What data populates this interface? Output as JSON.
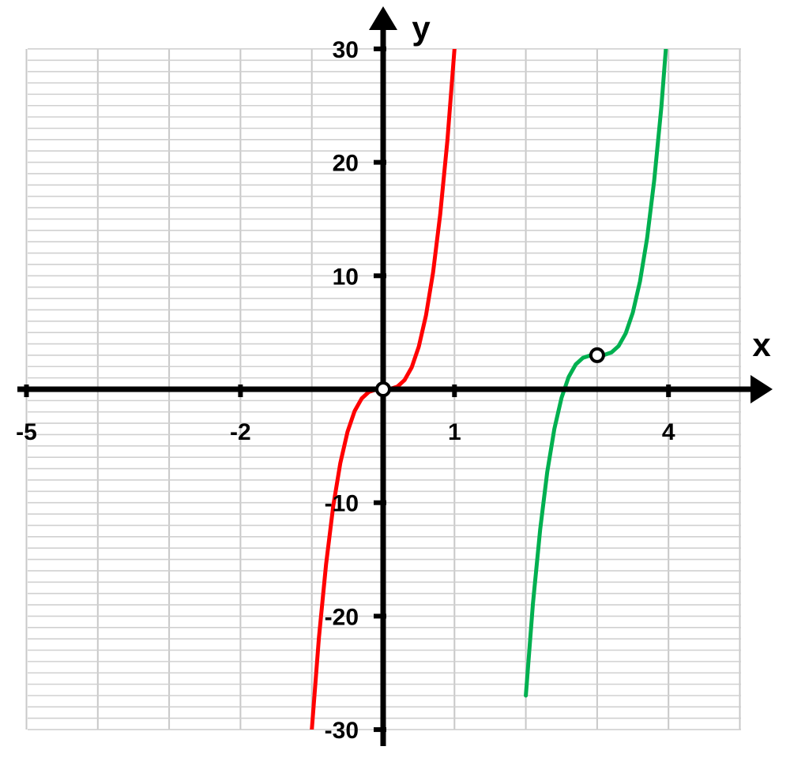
{
  "chart_data": {
    "type": "line",
    "xlabel": "x",
    "ylabel": "y",
    "xlim": [
      -5,
      5
    ],
    "ylim": [
      -30,
      30
    ],
    "x_tick_labels": [
      {
        "x": -5,
        "label": "-5"
      },
      {
        "x": -2,
        "label": "-2"
      },
      {
        "x": 1,
        "label": "1"
      },
      {
        "x": 4,
        "label": "4"
      }
    ],
    "y_tick_labels": [
      {
        "y": 30,
        "label": "30"
      },
      {
        "y": 20,
        "label": "20"
      },
      {
        "y": 10,
        "label": "10"
      },
      {
        "y": -10,
        "label": "-10"
      },
      {
        "y": -20,
        "label": "-20"
      },
      {
        "y": -30,
        "label": "-30"
      }
    ],
    "grid": true,
    "series": [
      {
        "color": "#ff0000",
        "x": [
          -1.0,
          -0.9,
          -0.8,
          -0.7,
          -0.6,
          -0.5,
          -0.4,
          -0.3,
          -0.2,
          -0.1,
          0,
          0.1,
          0.2,
          0.3,
          0.4,
          0.5,
          0.6,
          0.7,
          0.8,
          0.9,
          1.0
        ],
        "y": [
          -30,
          -21.9,
          -15.4,
          -10.3,
          -6.5,
          -3.75,
          -1.92,
          -0.81,
          -0.24,
          -0.03,
          0,
          0.03,
          0.24,
          0.81,
          1.92,
          3.75,
          6.5,
          10.3,
          15.4,
          21.9,
          30
        ],
        "point": {
          "x": 0,
          "y": 0
        }
      },
      {
        "color": "#00b050",
        "x": [
          2.0,
          2.1,
          2.2,
          2.3,
          2.4,
          2.5,
          2.6,
          2.7,
          2.8,
          2.9,
          3.0,
          3.1,
          3.2,
          3.3,
          3.4,
          3.5,
          3.6,
          3.7,
          3.8,
          3.9,
          4.0
        ],
        "y": [
          -27,
          -18.9,
          -12.4,
          -7.3,
          -3.5,
          -0.75,
          1.08,
          2.19,
          2.76,
          2.97,
          3,
          3.03,
          3.24,
          3.81,
          4.92,
          6.75,
          9.5,
          13.3,
          18.4,
          24.9,
          33
        ],
        "point": {
          "x": 3,
          "y": 3
        }
      }
    ]
  }
}
